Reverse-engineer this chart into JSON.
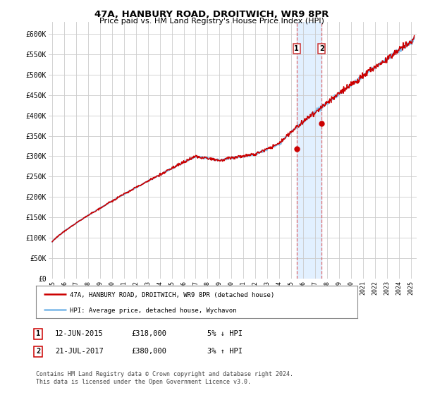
{
  "title": "47A, HANBURY ROAD, DROITWICH, WR9 8PR",
  "subtitle": "Price paid vs. HM Land Registry's House Price Index (HPI)",
  "ylabel_ticks": [
    "£0",
    "£50K",
    "£100K",
    "£150K",
    "£200K",
    "£250K",
    "£300K",
    "£350K",
    "£400K",
    "£450K",
    "£500K",
    "£550K",
    "£600K"
  ],
  "ytick_values": [
    0,
    50000,
    100000,
    150000,
    200000,
    250000,
    300000,
    350000,
    400000,
    450000,
    500000,
    550000,
    600000
  ],
  "ylim": [
    0,
    630000
  ],
  "xlim_start": 1994.7,
  "xlim_end": 2025.5,
  "hpi_color": "#7ab8e8",
  "price_color": "#cc0000",
  "marker_color": "#cc0000",
  "shading_color": "#ddeeff",
  "transaction1": {
    "date": "12-JUN-2015",
    "price": 318000,
    "hpi_diff": "5% ↓ HPI",
    "x": 2015.45
  },
  "transaction2": {
    "date": "21-JUL-2017",
    "price": 380000,
    "hpi_diff": "3% ↑ HPI",
    "x": 2017.55
  },
  "legend_label1": "47A, HANBURY ROAD, DROITWICH, WR9 8PR (detached house)",
  "legend_label2": "HPI: Average price, detached house, Wychavon",
  "footer": "Contains HM Land Registry data © Crown copyright and database right 2024.\nThis data is licensed under the Open Government Licence v3.0.",
  "background_color": "#ffffff",
  "grid_color": "#cccccc"
}
